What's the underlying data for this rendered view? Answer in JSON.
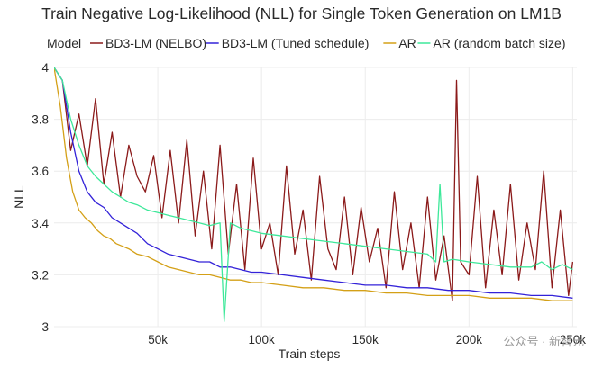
{
  "chart_data": {
    "type": "line",
    "title": "Train Negative Log-Likelihood (NLL) for Single Token Generation on LM1B",
    "legend_title": "Model",
    "legend_position": "top",
    "xlabel": "Train steps",
    "ylabel": "NLL",
    "xlim": [
      0,
      252000
    ],
    "ylim": [
      3.0,
      4.0
    ],
    "x_ticks": [
      50000,
      100000,
      150000,
      200000,
      250000
    ],
    "x_tick_labels": [
      "50k",
      "100k",
      "150k",
      "200k",
      "250k"
    ],
    "y_ticks": [
      3.0,
      3.2,
      3.4,
      3.6,
      3.8,
      4.0
    ],
    "y_tick_labels": [
      "3",
      "3.2",
      "3.4",
      "3.6",
      "3.8",
      "4"
    ],
    "grid": true,
    "series": [
      {
        "name": "BD3-LM (NELBO)",
        "color": "#8b1a1a",
        "x": [
          0,
          4000,
          8000,
          12000,
          16000,
          20000,
          24000,
          28000,
          32000,
          36000,
          40000,
          44000,
          48000,
          52000,
          56000,
          60000,
          64000,
          68000,
          72000,
          76000,
          80000,
          84000,
          88000,
          92000,
          96000,
          100000,
          104000,
          108000,
          112000,
          116000,
          120000,
          124000,
          128000,
          132000,
          136000,
          140000,
          144000,
          148000,
          152000,
          156000,
          160000,
          164000,
          168000,
          172000,
          176000,
          180000,
          184000,
          188000,
          192000,
          194000,
          196000,
          200000,
          204000,
          208000,
          212000,
          216000,
          220000,
          224000,
          228000,
          232000,
          236000,
          240000,
          244000,
          248000,
          250000
        ],
        "values": [
          4.0,
          3.95,
          3.68,
          3.82,
          3.62,
          3.88,
          3.55,
          3.75,
          3.5,
          3.7,
          3.58,
          3.52,
          3.66,
          3.42,
          3.68,
          3.4,
          3.72,
          3.35,
          3.6,
          3.3,
          3.7,
          3.28,
          3.55,
          3.22,
          3.65,
          3.3,
          3.4,
          3.2,
          3.62,
          3.28,
          3.45,
          3.18,
          3.58,
          3.3,
          3.22,
          3.5,
          3.2,
          3.46,
          3.25,
          3.38,
          3.15,
          3.52,
          3.22,
          3.4,
          3.15,
          3.5,
          3.18,
          3.35,
          3.1,
          3.95,
          3.25,
          3.2,
          3.58,
          3.15,
          3.45,
          3.2,
          3.55,
          3.18,
          3.4,
          3.22,
          3.6,
          3.15,
          3.45,
          3.12,
          3.25
        ]
      },
      {
        "name": "BD3-LM (Tuned schedule)",
        "color": "#3322d8",
        "x": [
          0,
          4000,
          8000,
          12000,
          16000,
          20000,
          24000,
          28000,
          32000,
          36000,
          40000,
          45000,
          50000,
          55000,
          60000,
          65000,
          70000,
          75000,
          80000,
          85000,
          90000,
          95000,
          100000,
          110000,
          120000,
          130000,
          140000,
          150000,
          160000,
          170000,
          180000,
          190000,
          200000,
          210000,
          220000,
          230000,
          240000,
          250000
        ],
        "values": [
          4.0,
          3.95,
          3.75,
          3.6,
          3.52,
          3.48,
          3.46,
          3.42,
          3.4,
          3.38,
          3.36,
          3.32,
          3.3,
          3.28,
          3.27,
          3.26,
          3.25,
          3.25,
          3.23,
          3.23,
          3.22,
          3.21,
          3.21,
          3.2,
          3.19,
          3.18,
          3.17,
          3.16,
          3.16,
          3.15,
          3.15,
          3.14,
          3.14,
          3.13,
          3.13,
          3.12,
          3.12,
          3.11
        ]
      },
      {
        "name": "AR",
        "color": "#d4a017",
        "x": [
          0,
          3000,
          6000,
          9000,
          12000,
          15000,
          18000,
          21000,
          24000,
          27000,
          30000,
          33000,
          36000,
          40000,
          45000,
          50000,
          55000,
          60000,
          65000,
          70000,
          75000,
          80000,
          85000,
          90000,
          95000,
          100000,
          110000,
          120000,
          130000,
          140000,
          150000,
          160000,
          170000,
          180000,
          190000,
          200000,
          210000,
          220000,
          230000,
          240000,
          250000
        ],
        "values": [
          4.0,
          3.85,
          3.65,
          3.52,
          3.45,
          3.42,
          3.4,
          3.37,
          3.35,
          3.34,
          3.32,
          3.31,
          3.3,
          3.28,
          3.27,
          3.25,
          3.23,
          3.22,
          3.21,
          3.2,
          3.2,
          3.19,
          3.18,
          3.18,
          3.17,
          3.17,
          3.16,
          3.15,
          3.15,
          3.14,
          3.14,
          3.13,
          3.13,
          3.12,
          3.12,
          3.12,
          3.11,
          3.11,
          3.11,
          3.1,
          3.1
        ]
      },
      {
        "name": "AR (random batch size)",
        "color": "#3ee89a",
        "x": [
          0,
          4000,
          8000,
          12000,
          16000,
          20000,
          24000,
          28000,
          32000,
          36000,
          40000,
          45000,
          50000,
          55000,
          60000,
          65000,
          70000,
          75000,
          80000,
          82000,
          85000,
          90000,
          95000,
          100000,
          110000,
          120000,
          130000,
          140000,
          150000,
          160000,
          170000,
          180000,
          184000,
          186000,
          188000,
          192000,
          200000,
          210000,
          220000,
          230000,
          235000,
          240000,
          245000,
          250000
        ],
        "values": [
          4.0,
          3.95,
          3.8,
          3.7,
          3.62,
          3.58,
          3.55,
          3.52,
          3.5,
          3.48,
          3.47,
          3.45,
          3.44,
          3.43,
          3.42,
          3.41,
          3.4,
          3.39,
          3.4,
          3.02,
          3.4,
          3.38,
          3.37,
          3.36,
          3.35,
          3.34,
          3.33,
          3.32,
          3.31,
          3.3,
          3.29,
          3.28,
          3.25,
          3.55,
          3.25,
          3.26,
          3.25,
          3.24,
          3.23,
          3.23,
          3.25,
          3.22,
          3.24,
          3.22
        ]
      }
    ]
  },
  "watermark": "公众号 · 新智元"
}
